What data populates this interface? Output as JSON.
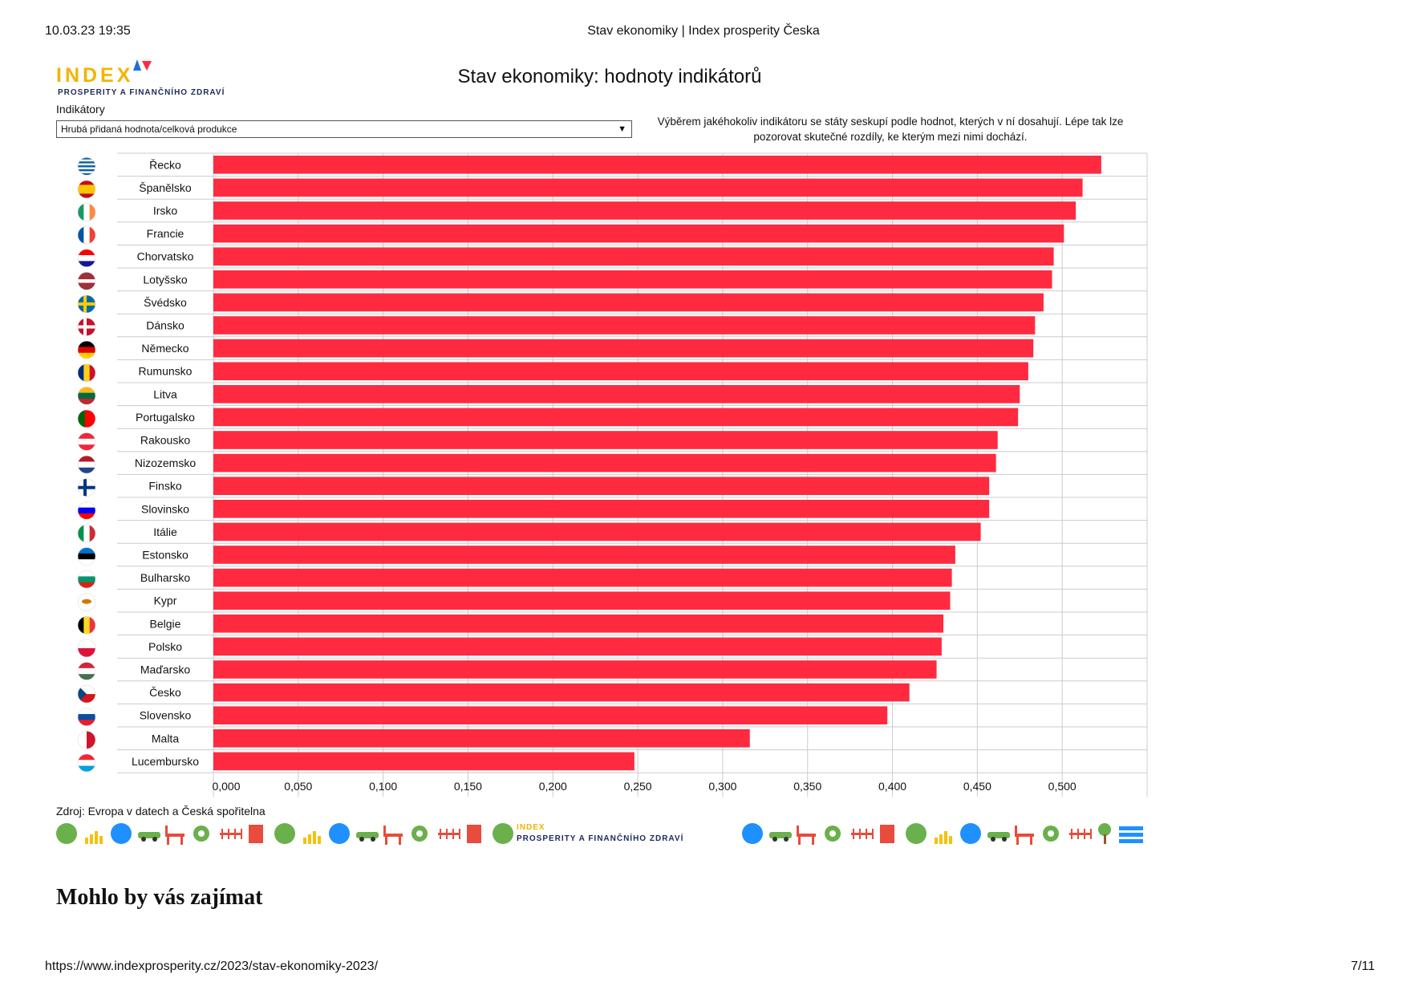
{
  "print_header": {
    "datetime": "10.03.23 19:35",
    "title": "Stav ekonomiky | Index prosperity Česka"
  },
  "print_footer": {
    "url": "https://www.indexprosperity.cz/2023/stav-ekonomiky-2023/",
    "page": "7/11"
  },
  "logo": {
    "word": "INDEX",
    "tagline": "PROSPERITY A FINANČNÍHO ZDRAVÍ"
  },
  "filter": {
    "label": "Indikátory",
    "selected": "Hrubá přidaná hodnota/celková produkce"
  },
  "info_text": "Výběrem jakéhokoliv indikátoru se státy seskupí podle hodnot, kterých v ní dosahují. Lépe tak lze pozorovat skutečné rozdíly, ke kterým mezi nimi dochází.",
  "source": "Zdroj: Evropa v datech a Česká spořitelna",
  "section_heading": "Mohlo by vás zajímat",
  "colors": {
    "bar": "#ff2a3f",
    "grid": "#cccccc",
    "text": "#111111"
  },
  "chart_data": {
    "type": "bar",
    "orientation": "horizontal",
    "title": "Stav ekonomiky: hodnoty indikátorů",
    "xlim": [
      0,
      0.55
    ],
    "grid": true,
    "x_ticks": [
      "0,000",
      "0,050",
      "0,100",
      "0,150",
      "0,200",
      "0,250",
      "0,300",
      "0,350",
      "0,400",
      "0,450",
      "0,500"
    ],
    "tick_values": [
      0,
      0.05,
      0.1,
      0.15,
      0.2,
      0.25,
      0.3,
      0.35,
      0.4,
      0.45,
      0.5
    ],
    "categories": [
      "Řecko",
      "Španělsko",
      "Irsko",
      "Francie",
      "Chorvatsko",
      "Lotyšsko",
      "Švédsko",
      "Dánsko",
      "Německo",
      "Rumunsko",
      "Litva",
      "Portugalsko",
      "Rakousko",
      "Nizozemsko",
      "Finsko",
      "Slovinsko",
      "Itálie",
      "Estonsko",
      "Bulharsko",
      "Kypr",
      "Belgie",
      "Polsko",
      "Maďarsko",
      "Česko",
      "Slovensko",
      "Malta",
      "Lucembursko"
    ],
    "flag_icons": [
      "flag-greece",
      "flag-spain",
      "flag-ireland",
      "flag-france",
      "flag-croatia",
      "flag-latvia",
      "flag-sweden",
      "flag-denmark",
      "flag-germany",
      "flag-romania",
      "flag-lithuania",
      "flag-portugal",
      "flag-austria",
      "flag-netherlands",
      "flag-finland",
      "flag-slovenia",
      "flag-italy",
      "flag-estonia",
      "flag-bulgaria",
      "flag-cyprus",
      "flag-belgium",
      "flag-poland",
      "flag-hungary",
      "flag-czechia",
      "flag-slovakia",
      "flag-malta",
      "flag-luxembourg"
    ],
    "values": [
      0.523,
      0.512,
      0.508,
      0.501,
      0.495,
      0.494,
      0.489,
      0.484,
      0.483,
      0.48,
      0.475,
      0.474,
      0.462,
      0.461,
      0.457,
      0.457,
      0.452,
      0.437,
      0.435,
      0.434,
      0.43,
      0.429,
      0.426,
      0.41,
      0.397,
      0.316,
      0.248
    ]
  }
}
